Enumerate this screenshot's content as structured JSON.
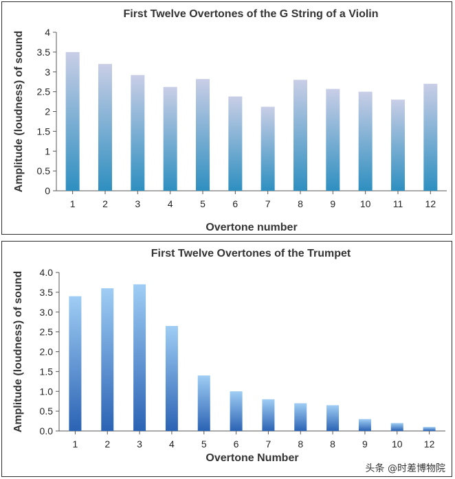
{
  "chart_data": [
    {
      "type": "bar",
      "title": "First Twelve Overtones of the G String of a Violin",
      "xlabel": "Overtone number",
      "ylabel": "Amplitude (loudness) of sound",
      "categories": [
        "1",
        "2",
        "3",
        "4",
        "5",
        "6",
        "7",
        "8",
        "9",
        "10",
        "11",
        "12"
      ],
      "values": [
        3.5,
        3.2,
        2.92,
        2.62,
        2.82,
        2.38,
        2.12,
        2.8,
        2.57,
        2.5,
        2.3,
        2.7
      ],
      "ylim": [
        0,
        4
      ],
      "yticks": [
        "0",
        "0.5",
        "1",
        "1.5",
        "2",
        "2.5",
        "3",
        "3.5",
        "4"
      ],
      "grid": false,
      "colors": {
        "top": "#c9cee6",
        "bottom": "#2e8fc0"
      }
    },
    {
      "type": "bar",
      "title": "First Twelve Overtones of the Trumpet",
      "xlabel": "Overtone Number",
      "ylabel": "Amplitude (loudness) of sound",
      "categories": [
        "1",
        "2",
        "3",
        "4",
        "5",
        "6",
        "7",
        "8",
        "8",
        "9",
        "10",
        "12"
      ],
      "values": [
        3.4,
        3.6,
        3.7,
        2.65,
        1.4,
        1.0,
        0.8,
        0.7,
        0.65,
        0.3,
        0.2,
        0.1
      ],
      "ylim": [
        0,
        4
      ],
      "yticks": [
        "0.0",
        "0.5",
        "1.0",
        "1.5",
        "2.0",
        "2.5",
        "3.0",
        "3.5",
        "4.0"
      ],
      "grid": false,
      "colors": {
        "top": "#9fcdf4",
        "bottom": "#2b63b4"
      }
    }
  ],
  "watermark": "头条 @时差博物院"
}
